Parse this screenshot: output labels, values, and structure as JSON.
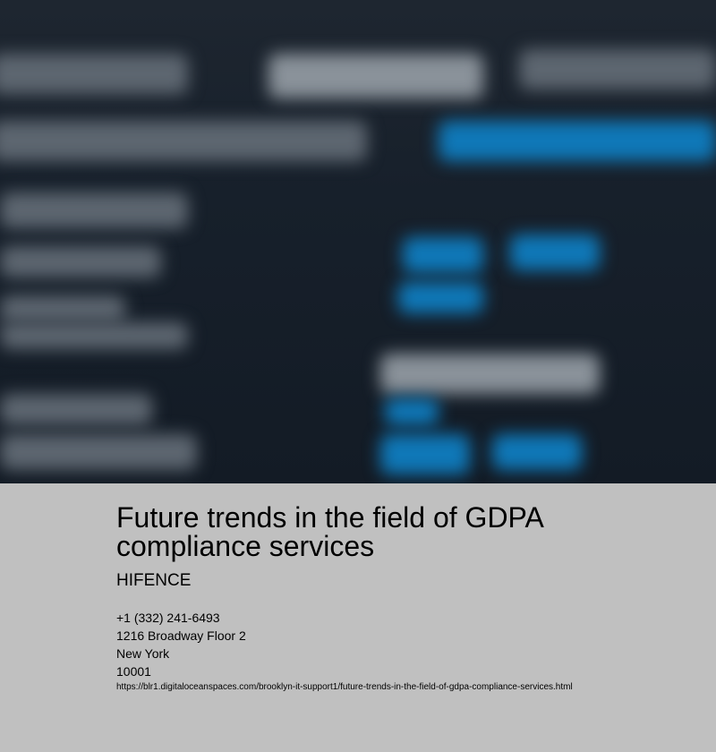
{
  "page": {
    "title": "Future trends in the field of GDPA compliance services",
    "brand": "HIFENCE",
    "contact": {
      "phone": "+1 (332) 241-6493",
      "street": "1216 Broadway Floor 2",
      "city": "New York",
      "zip": "10001"
    },
    "url": "https://blr1.digitaloceanspaces.com/brooklyn-it-support1/future-trends-in-the-field-of-gdpa-compliance-services.html"
  }
}
